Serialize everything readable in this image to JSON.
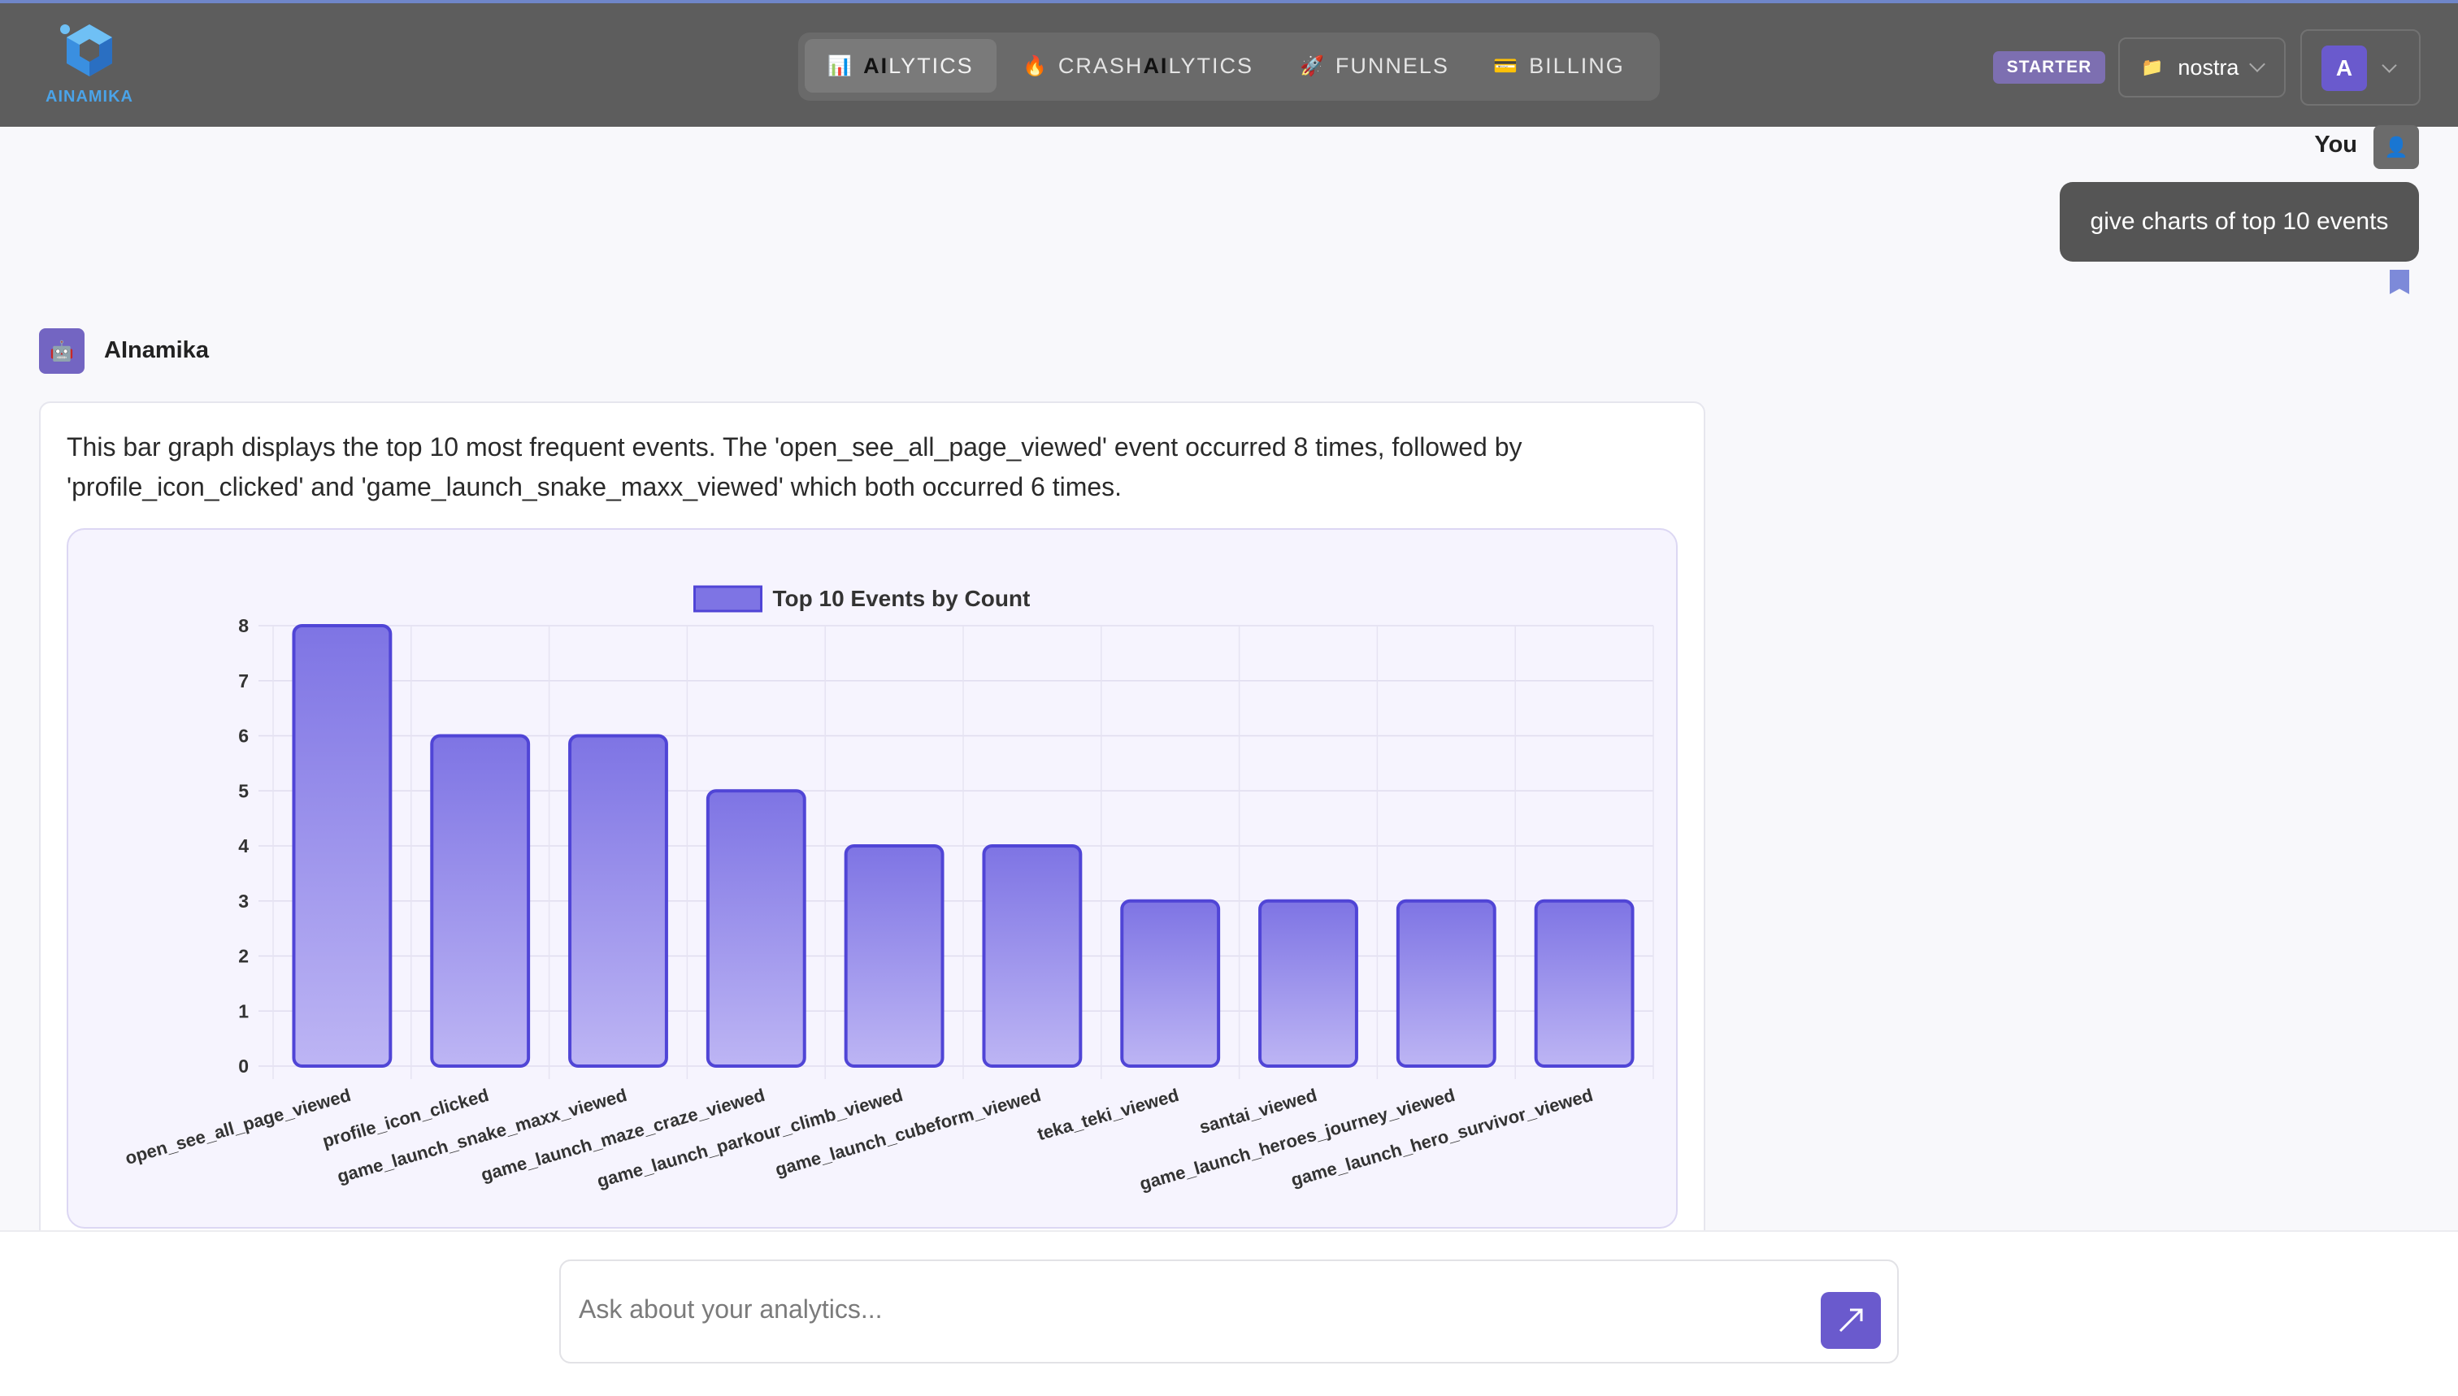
{
  "brand": {
    "logo_text": "AINAMIKA"
  },
  "nav": {
    "tabs": [
      {
        "icon": "bar-chart-icon",
        "glyph": "📊",
        "prefix": "",
        "ai": "AI",
        "suffix": "LYTICS",
        "active": true
      },
      {
        "icon": "fire-icon",
        "glyph": "🔥",
        "prefix": "CRASH",
        "ai": "AI",
        "suffix": "LYTICS",
        "active": false
      },
      {
        "icon": "rocket-icon",
        "glyph": "🚀",
        "prefix": "FUNNELS",
        "ai": "",
        "suffix": "",
        "active": false
      },
      {
        "icon": "credit-card-icon",
        "glyph": "💳",
        "prefix": "BILLING",
        "ai": "",
        "suffix": "",
        "active": false
      }
    ]
  },
  "header": {
    "plan_badge": "STARTER",
    "project": {
      "icon": "folder-icon",
      "glyph": "📁",
      "name": "nostra"
    },
    "user_initial": "A"
  },
  "conversation": {
    "user": {
      "label": "You",
      "avatar_glyph": "👤",
      "message": "give charts of top 10 events"
    },
    "assistant": {
      "name": "AInamika",
      "avatar_glyph": "🤖",
      "text": "This bar graph displays the top 10 most frequent events. The 'open_see_all_page_viewed' event occurred 8 times, followed by 'profile_icon_clicked' and 'game_launch_snake_maxx_viewed' which both occurred 6 times."
    }
  },
  "chart_data": {
    "type": "bar",
    "legend": "Top 10 Events by Count",
    "legend_position": "top",
    "categories": [
      "open_see_all_page_viewed",
      "profile_icon_clicked",
      "game_launch_snake_maxx_viewed",
      "game_launch_maze_craze_viewed",
      "game_launch_parkour_climb_viewed",
      "game_launch_cubeform_viewed",
      "teka_teki_viewed",
      "santai_viewed",
      "game_launch_heroes_journey_viewed",
      "game_launch_hero_survivor_viewed"
    ],
    "series": [
      {
        "name": "Top 10 Events by Count",
        "values": [
          8,
          6,
          6,
          5,
          4,
          4,
          3,
          3,
          3,
          3
        ]
      }
    ],
    "y_ticks": [
      "0",
      "1",
      "2",
      "3",
      "4",
      "5",
      "6",
      "7",
      "8"
    ],
    "ylim": [
      0,
      8
    ],
    "grid": true,
    "colors": {
      "bar_border": "#5045d6",
      "bar_top": "#7e74e4",
      "bar_bottom": "#bdb5f4"
    }
  },
  "input": {
    "placeholder": "Ask about your analytics...",
    "value": ""
  }
}
